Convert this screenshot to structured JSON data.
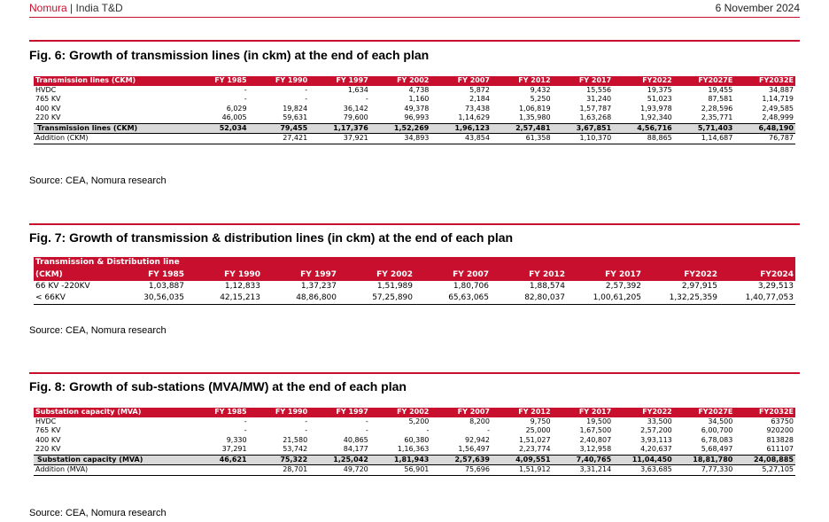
{
  "header": {
    "brand": "Nomura",
    "separator": " | ",
    "section": "India T&D",
    "date": "6 November 2024"
  },
  "fig6": {
    "title": "Fig. 6: Growth of transmission lines (in ckm) at the end of each plan",
    "columns": [
      "Transmission lines (CKM)",
      "FY 1985",
      "FY 1990",
      "FY 1997",
      "FY 2002",
      "FY 2007",
      "FY 2012",
      "FY 2017",
      "FY2022",
      "FY2027E",
      "FY2032E"
    ],
    "rows": [
      [
        "HVDC",
        "-",
        "-",
        "1,634",
        "4,738",
        "5,872",
        "9,432",
        "15,556",
        "19,375",
        "19,455",
        "34,887"
      ],
      [
        "765 KV",
        "-",
        "-",
        "-",
        "1,160",
        "2,184",
        "5,250",
        "31,240",
        "51,023",
        "87,581",
        "1,14,719"
      ],
      [
        "400 KV",
        "6,029",
        "19,824",
        "36,142",
        "49,378",
        "73,438",
        "1,06,819",
        "1,57,787",
        "1,93,978",
        "2,28,596",
        "2,49,585"
      ],
      [
        "220 KV",
        "46,005",
        "59,631",
        "79,600",
        "96,993",
        "1,14,629",
        "1,35,980",
        "1,63,268",
        "1,92,340",
        "2,35,771",
        "2,48,999"
      ]
    ],
    "total": [
      "Transmission lines (CKM)",
      "52,034",
      "79,455",
      "1,17,376",
      "1,52,269",
      "1,96,123",
      "2,57,481",
      "3,67,851",
      "4,56,716",
      "5,71,403",
      "6,48,190"
    ],
    "addition": [
      "Addition (CKM)",
      "",
      "27,421",
      "37,921",
      "34,893",
      "43,854",
      "61,358",
      "1,10,370",
      "88,865",
      "1,14,687",
      "76,787"
    ],
    "source": "Source: CEA, Nomura research"
  },
  "fig7": {
    "title": "Fig. 7: Growth of transmission & distribution lines (in ckm) at the end of each plan",
    "header_line1": "Transmission & Distribution line",
    "columns": [
      "(CKM)",
      "FY 1985",
      "FY 1990",
      "FY 1997",
      "FY 2002",
      "FY 2007",
      "FY 2012",
      "FY 2017",
      "FY2022",
      "FY2024"
    ],
    "rows": [
      [
        "66 KV -220KV",
        "1,03,887",
        "1,12,833",
        "1,37,237",
        "1,51,989",
        "1,80,706",
        "1,88,574",
        "2,57,392",
        "2,97,915",
        "3,29,513"
      ],
      [
        "< 66KV",
        "30,56,035",
        "42,15,213",
        "48,86,800",
        "57,25,890",
        "65,63,065",
        "82,80,037",
        "1,00,61,205",
        "1,32,25,359",
        "1,40,77,053"
      ]
    ],
    "source": "Source: CEA, Nomura research"
  },
  "fig8": {
    "title": "Fig. 8: Growth of sub-stations (MVA/MW) at the end of each plan",
    "columns": [
      "Substation capacity (MVA)",
      "FY 1985",
      "FY 1990",
      "FY 1997",
      "FY 2002",
      "FY 2007",
      "FY 2012",
      "FY 2017",
      "FY2022",
      "FY2027E",
      "FY2032E"
    ],
    "rows": [
      [
        "HVDC",
        "-",
        "-",
        "-",
        "5,200",
        "8,200",
        "9,750",
        "19,500",
        "33,500",
        "34,500",
        "63750"
      ],
      [
        "765 KV",
        "-",
        "-",
        "-",
        "-",
        "-",
        "25,000",
        "1,67,500",
        "2,57,200",
        "6,00,700",
        "920200"
      ],
      [
        "400 KV",
        "9,330",
        "21,580",
        "40,865",
        "60,380",
        "92,942",
        "1,51,027",
        "2,40,807",
        "3,93,113",
        "6,78,083",
        "813828"
      ],
      [
        "220 KV",
        "37,291",
        "53,742",
        "84,177",
        "1,16,363",
        "1,56,497",
        "2,23,774",
        "3,12,958",
        "4,20,637",
        "5,68,497",
        "611107"
      ]
    ],
    "total": [
      "Substation capacity (MVA)",
      "46,621",
      "75,322",
      "1,25,042",
      "1,81,943",
      "2,57,639",
      "4,09,551",
      "7,40,765",
      "11,04,450",
      "18,81,780",
      "24,08,885"
    ],
    "addition": [
      "Addition (MVA)",
      "",
      "28,701",
      "49,720",
      "56,901",
      "75,696",
      "1,51,912",
      "3,31,214",
      "3,63,685",
      "7,77,330",
      "5,27,105"
    ],
    "source": "Source: CEA, Nomura research"
  }
}
